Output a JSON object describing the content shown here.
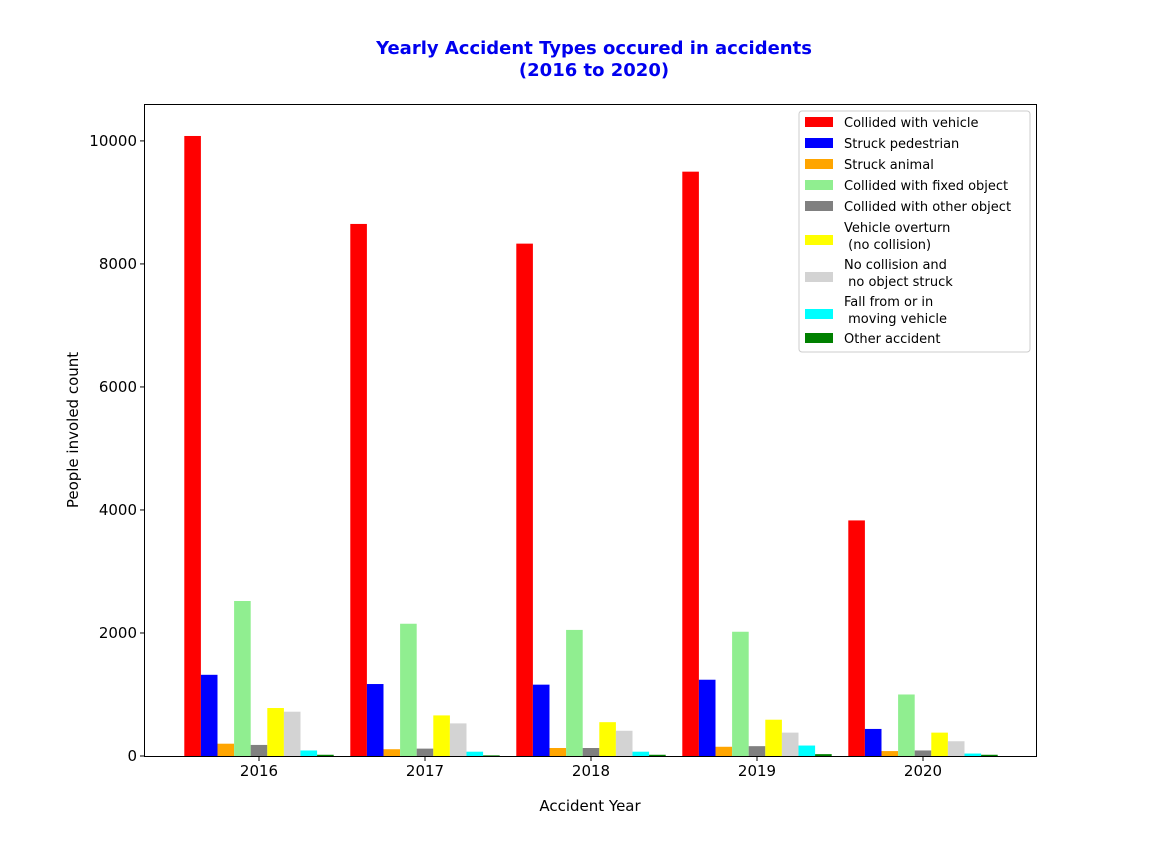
{
  "chart_data": {
    "type": "bar",
    "title": "Yearly Accident Types occured in accidents",
    "subtitle": "(2016 to 2020)",
    "xlabel": "Accident Year",
    "ylabel": "People involed count",
    "categories": [
      "2016",
      "2017",
      "2018",
      "2019",
      "2020"
    ],
    "ylim": [
      0,
      10600
    ],
    "yticks": [
      0,
      2000,
      4000,
      6000,
      8000,
      10000
    ],
    "grid": false,
    "legend_position": "top-right",
    "title_color": "#0000ee",
    "series": [
      {
        "name": "Collided with vehicle",
        "color": "#ff0000",
        "values": [
          10080,
          8650,
          8330,
          9500,
          3830
        ]
      },
      {
        "name": "Struck pedestrian",
        "color": "#0000ff",
        "values": [
          1320,
          1170,
          1160,
          1240,
          440
        ]
      },
      {
        "name": "Struck animal",
        "color": "#ffa500",
        "values": [
          200,
          110,
          130,
          150,
          80
        ]
      },
      {
        "name": "Collided with fixed object",
        "color": "#90ee90",
        "values": [
          2520,
          2150,
          2050,
          2020,
          1000
        ]
      },
      {
        "name": "Collided with other object",
        "color": "#808080",
        "values": [
          180,
          120,
          130,
          160,
          90
        ]
      },
      {
        "name": "Vehicle overturn\n (no collision)",
        "color": "#ffff00",
        "values": [
          780,
          660,
          550,
          590,
          380
        ]
      },
      {
        "name": "No collision and\n no object struck",
        "color": "#d3d3d3",
        "values": [
          720,
          530,
          410,
          380,
          240
        ]
      },
      {
        "name": "Fall from or in\n moving vehicle",
        "color": "#00ffff",
        "values": [
          90,
          70,
          70,
          170,
          40
        ]
      },
      {
        "name": "Other accident",
        "color": "#008000",
        "values": [
          20,
          10,
          20,
          30,
          20
        ]
      }
    ]
  }
}
